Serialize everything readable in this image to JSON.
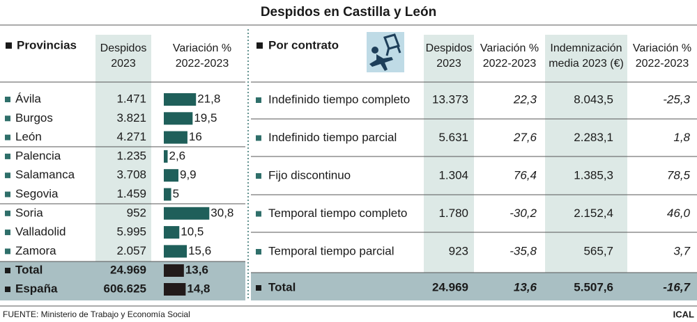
{
  "title": "Despidos en Castilla y León",
  "provinces": {
    "heading": "Provincias",
    "columns": [
      [
        "Despidos",
        "2023"
      ],
      [
        "Variación %",
        "2022-2023"
      ]
    ],
    "rows": [
      {
        "name": "Ávila",
        "despidos": "1.471",
        "variation": {
          "value": 21.8,
          "label": "21,8"
        }
      },
      {
        "name": "Burgos",
        "despidos": "3.821",
        "variation": {
          "value": 19.5,
          "label": "19,5"
        }
      },
      {
        "name": "León",
        "despidos": "4.271",
        "variation": {
          "value": 16,
          "label": "16"
        }
      },
      {
        "name": "Palencia",
        "despidos": "1.235",
        "variation": {
          "value": 2.6,
          "label": "2,6"
        }
      },
      {
        "name": "Salamanca",
        "despidos": "3.708",
        "variation": {
          "value": 9.9,
          "label": "9,9"
        }
      },
      {
        "name": "Segovia",
        "despidos": "1.459",
        "variation": {
          "value": 5,
          "label": "5"
        }
      },
      {
        "name": "Soria",
        "despidos": "952",
        "variation": {
          "value": 30.8,
          "label": "30,8"
        }
      },
      {
        "name": "Valladolid",
        "despidos": "5.995",
        "variation": {
          "value": 10.5,
          "label": "10,5"
        }
      },
      {
        "name": "Zamora",
        "despidos": "2.057",
        "variation": {
          "value": 15.6,
          "label": "15,6"
        }
      }
    ],
    "totals": [
      {
        "name": "Total",
        "despidos": "24.969",
        "variation": {
          "value": 13.6,
          "label": "13,6"
        }
      },
      {
        "name": "España",
        "despidos": "606.625",
        "variation": {
          "value": 14.8,
          "label": "14,8"
        }
      }
    ]
  },
  "contracts": {
    "heading": "Por contrato",
    "columns": [
      [
        "Despidos",
        "2023"
      ],
      [
        "Variación %",
        "2022-2023"
      ],
      [
        "Indemnización",
        "media 2023 (€)"
      ],
      [
        "Variación %",
        "2022-2023"
      ]
    ],
    "rows": [
      {
        "name": "Indefinido tiempo completo",
        "cells": [
          "13.373",
          "22,3",
          "8.043,5",
          "-25,3"
        ]
      },
      {
        "name": "Indefinido tiempo parcial",
        "cells": [
          "5.631",
          "27,6",
          "2.283,1",
          "1,8"
        ]
      },
      {
        "name": "Fijo discontinuo",
        "cells": [
          "1.304",
          "76,4",
          "1.385,3",
          "78,5"
        ]
      },
      {
        "name": "Temporal tiempo completo",
        "cells": [
          "1.780",
          "-30,2",
          "2.152,4",
          "46,0"
        ]
      },
      {
        "name": "Temporal tiempo parcial",
        "cells": [
          "923",
          "-35,8",
          "565,7",
          "3,7"
        ]
      }
    ],
    "total": {
      "name": "Total",
      "cells": [
        "24.969",
        "13,6",
        "5.507,6",
        "-16,7"
      ]
    }
  },
  "footer": {
    "source": "FUENTE: Ministerio de Trabajo y Economía Social",
    "credit": "ICAL"
  }
}
